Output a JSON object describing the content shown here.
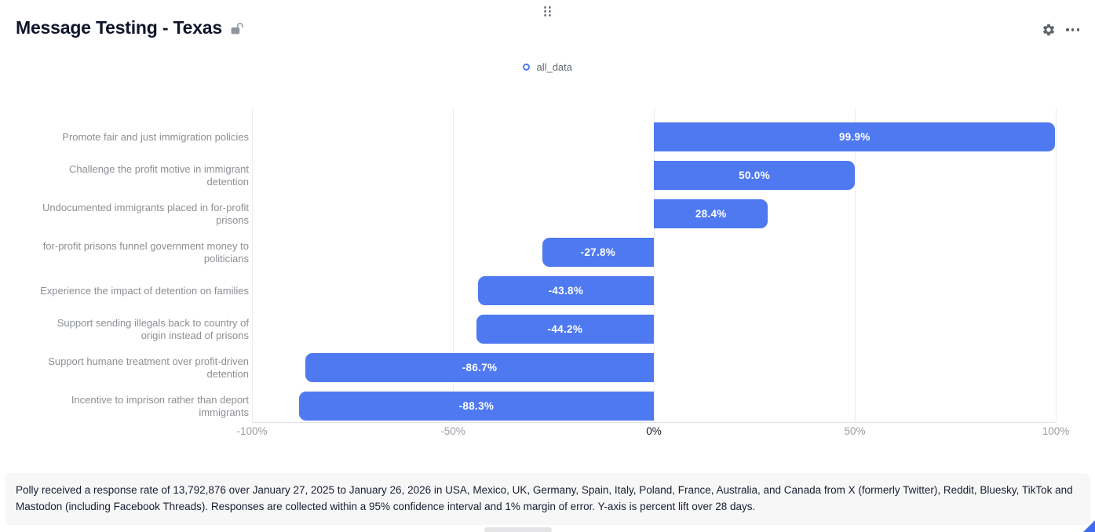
{
  "header": {
    "title": "Message Testing - Texas",
    "lock_icon": "unlocked-padlock-icon",
    "drag_handle_icon": "drag-dots-icon",
    "settings_icon": "gear-icon",
    "more_icon": "ellipsis-icon"
  },
  "legend": {
    "position": "top-center",
    "items": [
      {
        "label": "all_data",
        "marker": "ring-circle",
        "color": "#4e79f0"
      }
    ]
  },
  "chart_data": {
    "type": "bar",
    "orientation": "horizontal",
    "title": "Message Testing - Texas",
    "series_name": "all_data",
    "categories": [
      "Promote fair and just immigration policies",
      "Challenge the profit motive in immigrant detention",
      "Undocumented immigrants placed in for-profit prisons",
      "for-profit prisons funnel government money to politicians",
      "Experience the impact of detention on families",
      "Support sending illegals back to country of origin instead of prisons",
      "Support humane treatment over profit-driven detention",
      "Incentive to imprison rather than deport immigrants"
    ],
    "values": [
      99.9,
      50.0,
      28.4,
      -27.8,
      -43.8,
      -44.2,
      -86.7,
      -88.3
    ],
    "value_labels": [
      "99.9%",
      "50.0%",
      "28.4%",
      "-27.8%",
      "-43.8%",
      "-44.2%",
      "-86.7%",
      "-88.3%"
    ],
    "x_ticks": [
      "-100%",
      "-50%",
      "0%",
      "50%",
      "100%"
    ],
    "zero_tick": "0%",
    "xlim": [
      -100,
      100
    ],
    "xlabel": "",
    "ylabel": "",
    "grid": true,
    "bar_color": "#4e79f0",
    "value_label_color": "#ffffff"
  },
  "footer": {
    "disclaimer": "Polly received a response rate of 13,792,876 over January 27, 2025 to January 26, 2026 in USA, Mexico, UK, Germany, Spain, Italy, Poland, France, Australia, and Canada from X (formerly Twitter), Reddit, Bluesky, TikTok and Mastodon (including Facebook Threads). Responses are collected within a 95% confidence interval and 1% margin of error. Y-axis is percent lift over 28 days."
  },
  "colors": {
    "bar": "#4e79f0",
    "title_text": "#10152a",
    "category_text": "#8c8f94",
    "axis_text": "#9a9da3",
    "zero_axis_text": "#14182a",
    "gridline": "#ededf0",
    "footer_bg": "#f7f7f8",
    "footer_text": "#181e30",
    "icon_gray": "#5f6368",
    "resize_handle": "#3e6bf0"
  }
}
